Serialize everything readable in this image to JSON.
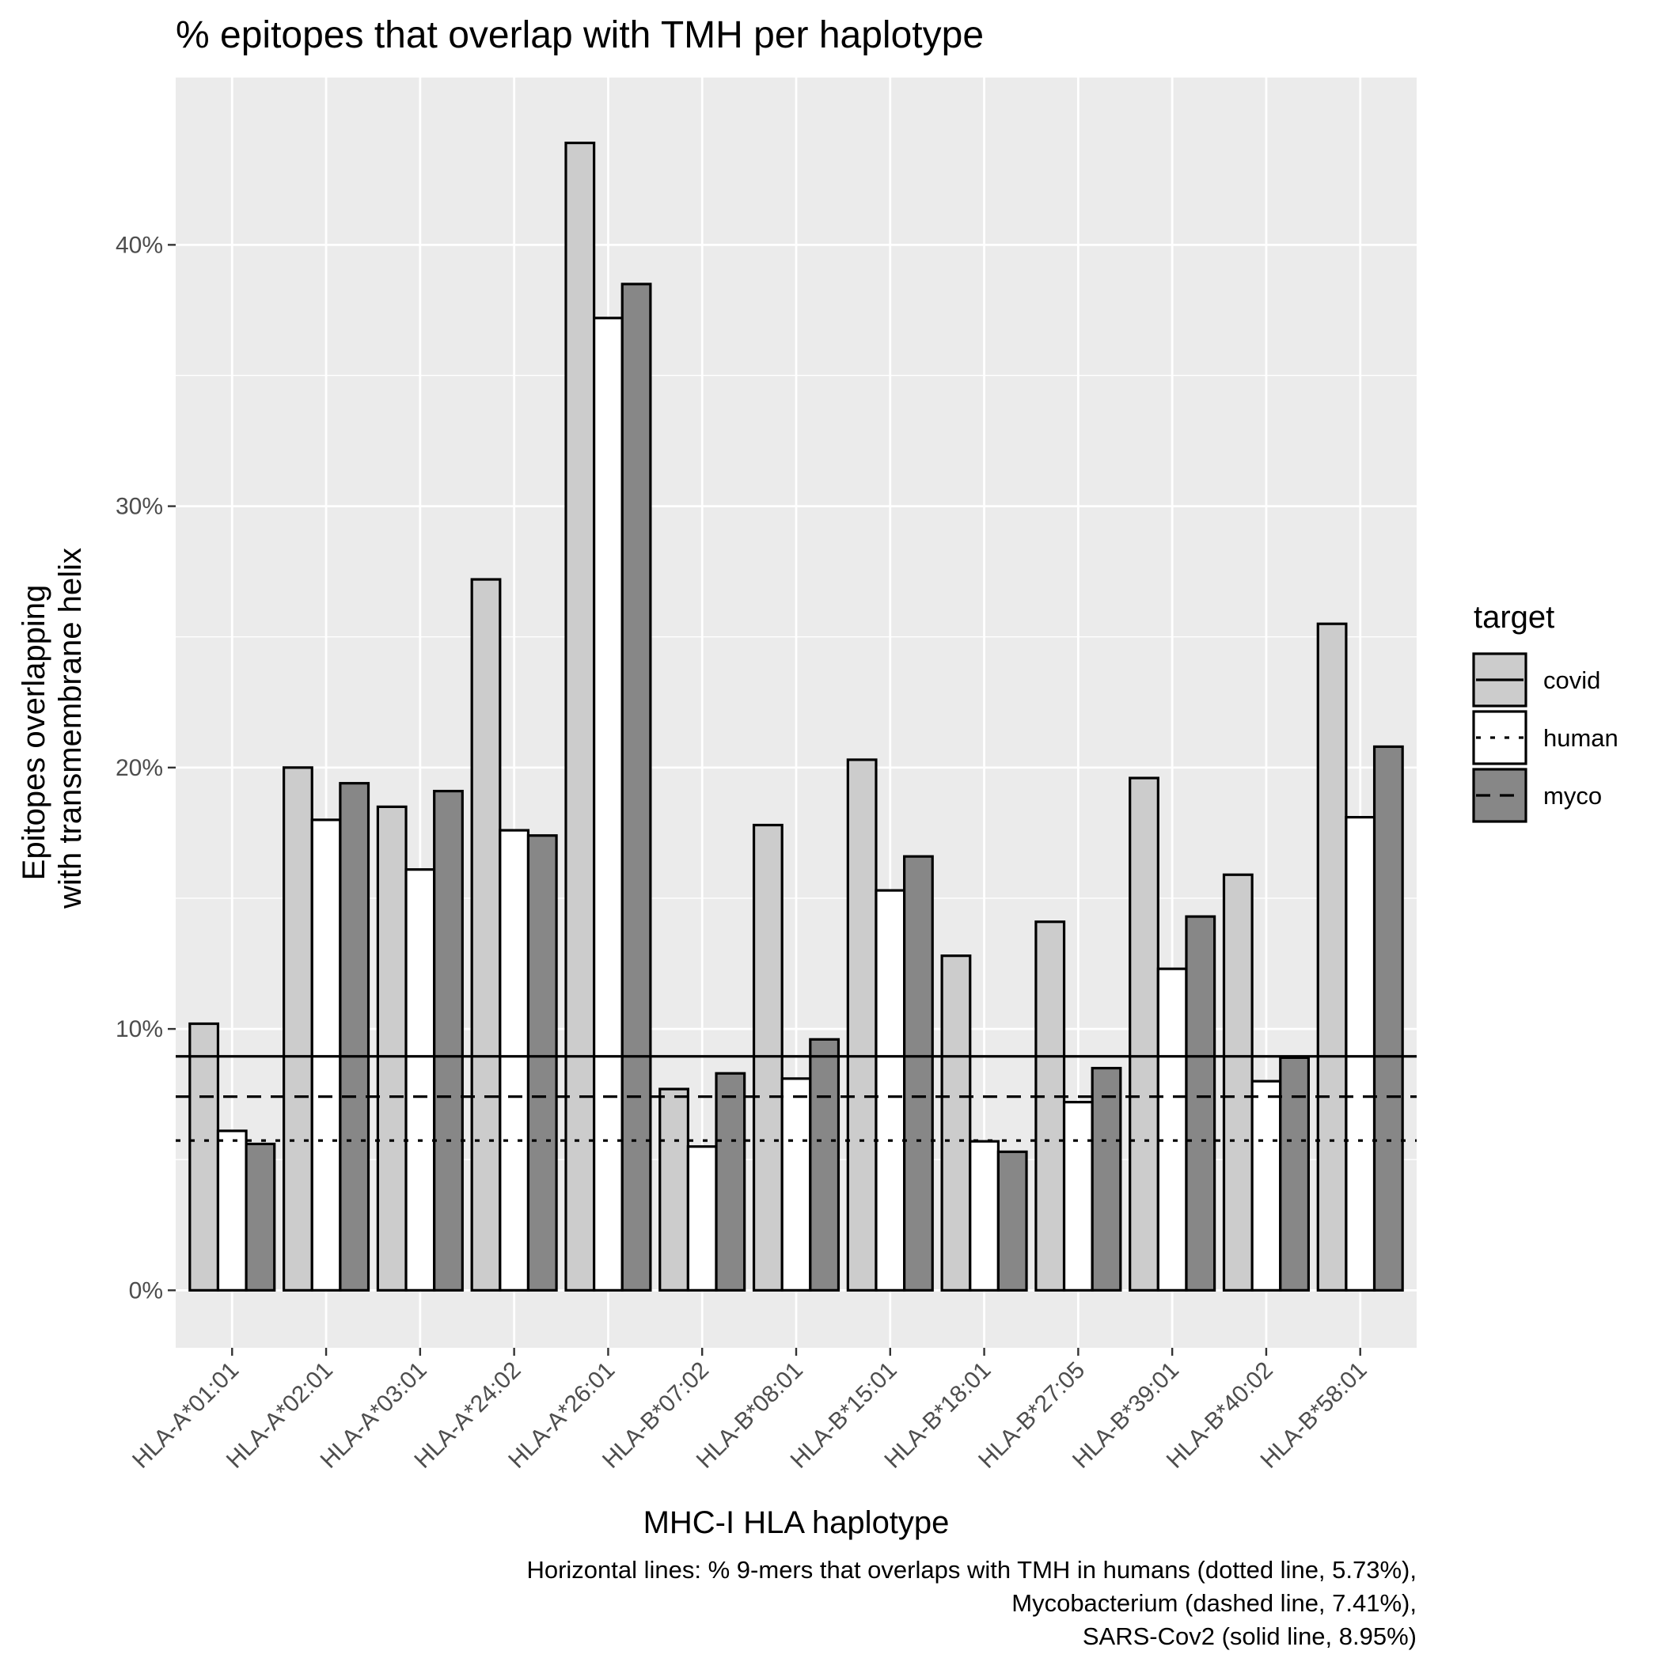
{
  "chart_data": {
    "type": "bar",
    "title": "% epitopes that overlap with TMH per haplotype",
    "xlabel": "MHC-I HLA haplotype",
    "ylabel_lines": [
      "Epitopes overlapping",
      "with transmembrane helix"
    ],
    "caption_lines": [
      "Horizontal lines: % 9-mers that overlaps with TMH in humans (dotted line, 5.73%),",
      "Mycobacterium (dashed line, 7.41%),",
      "SARS-Cov2 (solid line, 8.95%)"
    ],
    "categories": [
      "HLA-A*01:01",
      "HLA-A*02:01",
      "HLA-A*03:01",
      "HLA-A*24:02",
      "HLA-A*26:01",
      "HLA-B*07:02",
      "HLA-B*08:01",
      "HLA-B*15:01",
      "HLA-B*18:01",
      "HLA-B*27:05",
      "HLA-B*39:01",
      "HLA-B*40:02",
      "HLA-B*58:01"
    ],
    "series": [
      {
        "name": "covid",
        "color": "#cccccc",
        "values": [
          10.2,
          20.0,
          18.5,
          27.2,
          43.9,
          7.7,
          17.8,
          20.3,
          12.8,
          14.1,
          19.6,
          15.9,
          25.5
        ]
      },
      {
        "name": "human",
        "color": "#ffffff",
        "values": [
          6.1,
          18.0,
          16.1,
          17.6,
          37.2,
          5.5,
          8.1,
          15.3,
          5.7,
          7.2,
          12.3,
          8.0,
          18.1
        ]
      },
      {
        "name": "myco",
        "color": "#878787",
        "values": [
          5.6,
          19.4,
          19.1,
          17.4,
          38.5,
          8.3,
          9.6,
          16.6,
          5.3,
          8.5,
          14.3,
          8.9,
          20.8
        ]
      }
    ],
    "y_ticks": [
      "0%",
      "10%",
      "20%",
      "30%",
      "40%"
    ],
    "ylim": [
      -2.2,
      46.4
    ],
    "grid": true,
    "reference_lines": [
      {
        "value": 8.95,
        "style": "solid"
      },
      {
        "value": 7.41,
        "style": "dashed"
      },
      {
        "value": 5.73,
        "style": "dotted"
      }
    ],
    "legend": {
      "title": "target",
      "position": "right"
    }
  }
}
